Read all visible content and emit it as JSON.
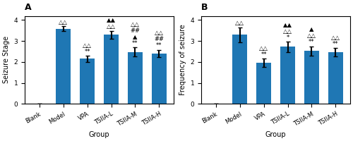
{
  "chart_data": [
    {
      "type": "bar",
      "title": "A",
      "categories": [
        "Blank",
        "Model",
        "VPA",
        "TSIIA-L",
        "TSIIA-M",
        "TSIIA-H"
      ],
      "values": [
        0.0,
        3.58,
        2.15,
        3.3,
        2.47,
        2.4
      ],
      "errors": [
        0.0,
        0.12,
        0.15,
        0.18,
        0.22,
        0.18
      ],
      "x_label": "Group",
      "y_label": "Seizure Stage",
      "ylim": [
        0,
        4.2
      ],
      "yticks": [
        0,
        1,
        2,
        3,
        4
      ],
      "annotations": [
        {
          "category": "Model",
          "text": [
            "△△"
          ]
        },
        {
          "category": "VPA",
          "text": [
            "△△",
            "**"
          ]
        },
        {
          "category": "TSIIA-L",
          "text": [
            "▲▲",
            "△△"
          ]
        },
        {
          "category": "TSIIA-M",
          "text": [
            "△△",
            "##",
            "▲",
            "**"
          ]
        },
        {
          "category": "TSIIA-H",
          "text": [
            "△△",
            "##",
            "**"
          ]
        }
      ]
    },
    {
      "type": "bar",
      "title": "B",
      "categories": [
        "Blank",
        "Model",
        "VPA",
        "TSIIA-L",
        "TSIIA-M",
        "TSIIA-H"
      ],
      "values": [
        0.0,
        3.3,
        1.95,
        2.72,
        2.53,
        2.47
      ],
      "errors": [
        0.0,
        0.35,
        0.2,
        0.25,
        0.22,
        0.2
      ],
      "x_label": "Group",
      "y_label": "Frequency of seizure",
      "ylim": [
        0,
        4.2
      ],
      "yticks": [
        0,
        1,
        2,
        3,
        4
      ],
      "annotations": [
        {
          "category": "Model",
          "text": [
            "△△"
          ]
        },
        {
          "category": "VPA",
          "text": [
            "△△",
            "**"
          ]
        },
        {
          "category": "TSIIA-L",
          "text": [
            "▲▲",
            "△△",
            "*"
          ]
        },
        {
          "category": "TSIIA-M",
          "text": [
            "▲",
            "△△",
            "**"
          ]
        },
        {
          "category": "TSIIA-H",
          "text": [
            "△△",
            "**"
          ]
        }
      ]
    }
  ]
}
